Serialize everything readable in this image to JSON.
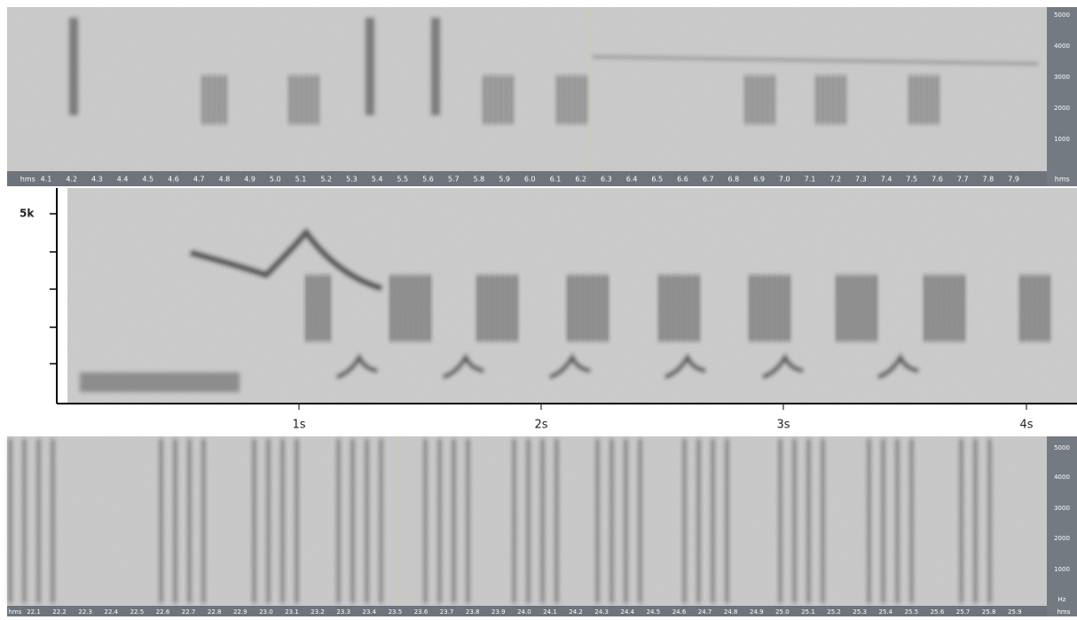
{
  "panels": [
    {
      "x_labels": [
        "hms",
        "4.1",
        "4.2",
        "4.3",
        "4.4",
        "4.5",
        "4.6",
        "4.7",
        "4.8",
        "4.9",
        "5.0",
        "5.1",
        "5.2",
        "5.3",
        "5.4",
        "5.5",
        "5.6",
        "5.7",
        "5.8",
        "5.9",
        "6.0",
        "6.1",
        "6.2",
        "6.3",
        "6.4",
        "6.5",
        "6.6",
        "6.7",
        "6.8",
        "6.9",
        "7.0",
        "7.1",
        "7.2",
        "7.3",
        "7.4",
        "7.5",
        "7.6",
        "7.7",
        "7.8",
        "7.9",
        "hms"
      ],
      "y_labels": [
        "5000",
        "4000",
        "3000",
        "2000",
        "1000"
      ]
    },
    {
      "x_labels": [
        "1s",
        "2s",
        "3s",
        "4s"
      ],
      "y_labels": [
        "5k"
      ]
    },
    {
      "x_labels": [
        "hms",
        "22.1",
        "22.2",
        "22.3",
        "22.4",
        "22.5",
        "22.6",
        "22.7",
        "22.8",
        "22.9",
        "23.0",
        "23.1",
        "23.2",
        "23.3",
        "23.4",
        "23.5",
        "23.6",
        "23.7",
        "23.8",
        "23.9",
        "24.0",
        "24.1",
        "24.2",
        "24.3",
        "24.4",
        "24.5",
        "24.6",
        "24.7",
        "24.8",
        "24.9",
        "25.0",
        "25.1",
        "25.2",
        "25.3",
        "25.4",
        "25.5",
        "25.6",
        "25.7",
        "25.8",
        "25.9",
        "hms"
      ],
      "y_labels": [
        "5000",
        "4000",
        "3000",
        "2000",
        "1000",
        "Hz"
      ]
    }
  ]
}
